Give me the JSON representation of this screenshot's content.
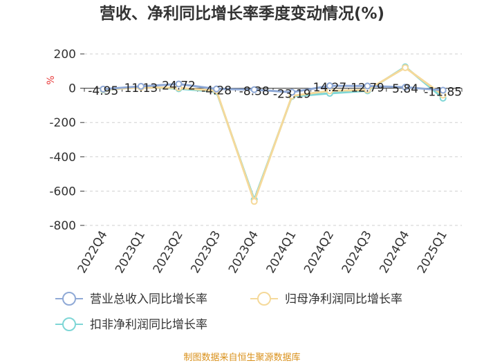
{
  "chart_data": {
    "type": "line",
    "title": "营收、净利同比增长率季度变动情况(%)",
    "ylabel": "%",
    "ylim": [
      -800,
      200
    ],
    "yticks": [
      200,
      0,
      -200,
      -400,
      -600,
      -800
    ],
    "grid": true,
    "legend_position": "bottom",
    "categories": [
      "2022Q4",
      "2023Q1",
      "2023Q2",
      "2023Q3",
      "2023Q4",
      "2024Q1",
      "2024Q2",
      "2024Q3",
      "2024Q4",
      "2025Q1"
    ],
    "series": [
      {
        "name": "营业总收入同比增长率",
        "color": "#8fa9d6",
        "values": [
          -4.95,
          11.13,
          24.72,
          -4.28,
          -8.38,
          -23.19,
          14.27,
          12.79,
          5.84,
          -11.85
        ]
      },
      {
        "name": "归母净利润同比增长率",
        "color": "#f5d99a",
        "values": [
          -8,
          5,
          2,
          -15,
          -660,
          -45,
          -15,
          -10,
          120,
          -40
        ]
      },
      {
        "name": "扣非净利润同比增长率",
        "color": "#7ed6d6",
        "values": [
          -10,
          8,
          -3,
          -20,
          -650,
          -48,
          -30,
          -15,
          125,
          -58
        ]
      }
    ],
    "data_labels": [
      "-4.95",
      "11.13",
      "24.72",
      "-4.28",
      "-8.38",
      "-23.19",
      "14.27",
      "12.79",
      "5.84",
      "-11.85"
    ]
  },
  "source": "制图数据来自恒生聚源数据库"
}
